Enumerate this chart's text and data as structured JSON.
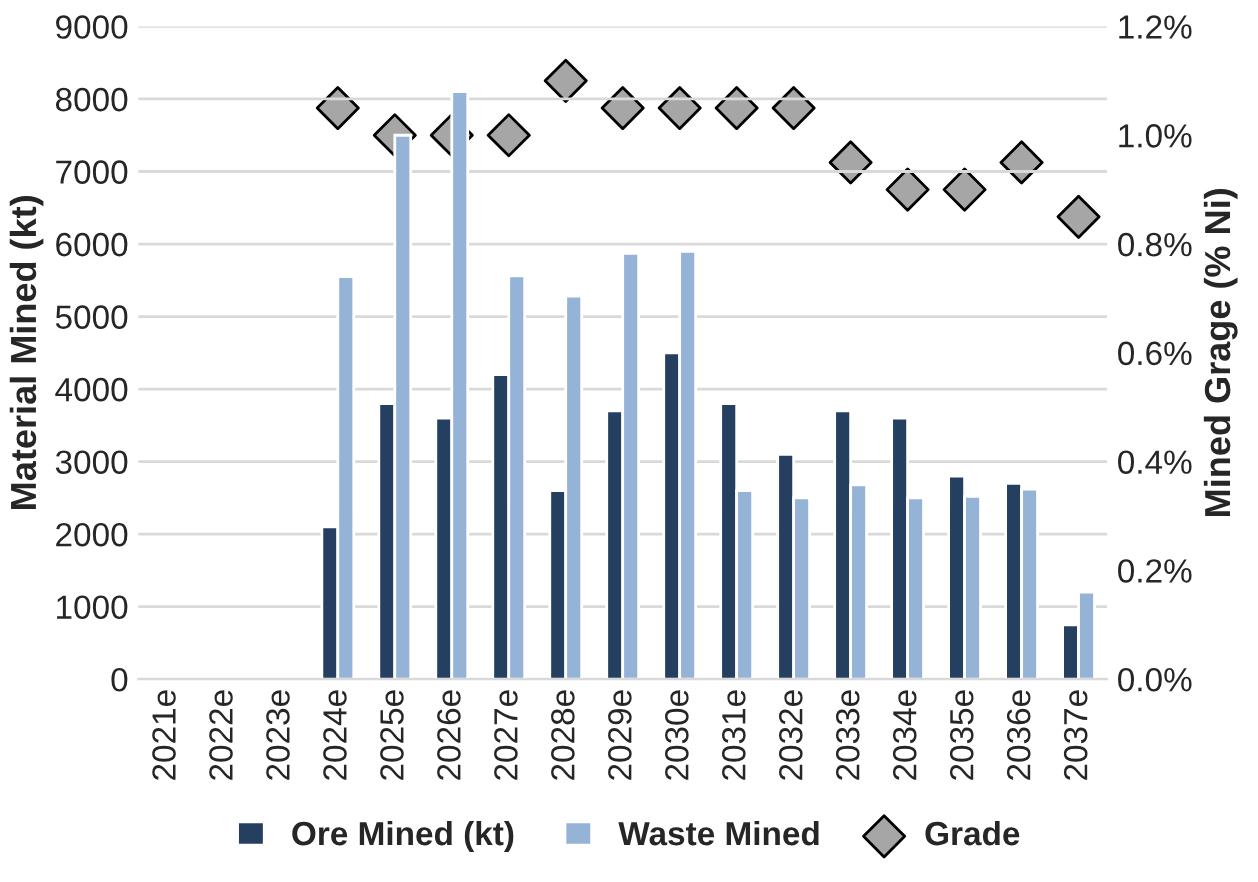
{
  "chart_data": {
    "type": "bar",
    "categories": [
      "2021e",
      "2022e",
      "2023e",
      "2024e",
      "2025e",
      "2026e",
      "2027e",
      "2028e",
      "2029e",
      "2030e",
      "2031e",
      "2032e",
      "2033e",
      "2034e",
      "2035e",
      "2036e",
      "2037e"
    ],
    "ylabel": "Material Mined (kt)",
    "y2label": "Mined Grage (% Ni)",
    "ylim": [
      0,
      9000
    ],
    "yticks": [
      0,
      1000,
      2000,
      3000,
      4000,
      5000,
      6000,
      7000,
      8000,
      9000
    ],
    "y2lim": [
      0,
      1.2
    ],
    "y2ticks": [
      {
        "value": 0,
        "label": "0.0%"
      },
      {
        "value": 0.2,
        "label": "0.2%"
      },
      {
        "value": 0.4,
        "label": "0.4%"
      },
      {
        "value": 0.6,
        "label": "0.6%"
      },
      {
        "value": 0.8,
        "label": "0.8%"
      },
      {
        "value": 1.0,
        "label": "1.0%"
      },
      {
        "value": 1.2,
        "label": "1.2%"
      }
    ],
    "grid": "y",
    "legend": "bottom",
    "series": [
      {
        "name": "Ore Mined (kt)",
        "color": "#243f60",
        "values": [
          null,
          null,
          null,
          2100,
          3800,
          3600,
          4200,
          2600,
          3700,
          4500,
          3800,
          3100,
          3700,
          3600,
          2800,
          2700,
          750
        ]
      },
      {
        "name": "Waste Mined",
        "color": "#95b3d7",
        "values": [
          null,
          null,
          null,
          5550,
          7500,
          8100,
          5560,
          5280,
          5870,
          5900,
          2600,
          2500,
          2680,
          2500,
          2520,
          2620,
          1200
        ]
      },
      {
        "name": "Grade",
        "type": "scatter",
        "axis": "y2",
        "marker": "diamond",
        "color": "#a6a6a6",
        "values": [
          null,
          null,
          null,
          1.05,
          1.0,
          1.0,
          1.0,
          1.1,
          1.05,
          1.05,
          1.05,
          1.05,
          0.95,
          0.9,
          0.9,
          0.95,
          0.85
        ]
      }
    ]
  }
}
